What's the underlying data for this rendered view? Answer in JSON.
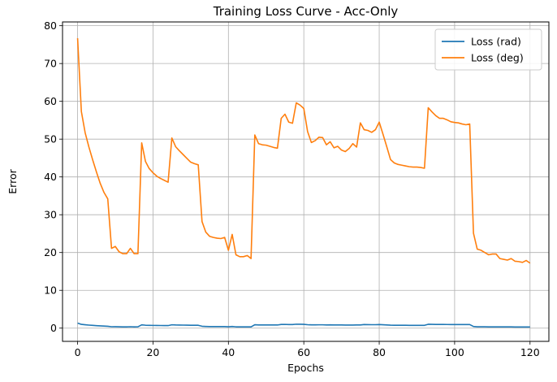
{
  "chart_data": {
    "type": "line",
    "title": "Training Loss Curve - Acc-Only",
    "xlabel": "Epochs",
    "ylabel": "Error",
    "xlim": [
      -4,
      125
    ],
    "ylim": [
      -3.5,
      81
    ],
    "xticks": [
      0,
      20,
      40,
      60,
      80,
      100,
      120
    ],
    "yticks": [
      0,
      10,
      20,
      30,
      40,
      50,
      60,
      70,
      80
    ],
    "grid": true,
    "legend_position": "top-right",
    "x": [
      0,
      1,
      2,
      3,
      4,
      5,
      6,
      7,
      8,
      9,
      10,
      11,
      12,
      13,
      14,
      15,
      16,
      17,
      18,
      19,
      20,
      21,
      22,
      23,
      24,
      25,
      26,
      27,
      28,
      29,
      30,
      31,
      32,
      33,
      34,
      35,
      36,
      37,
      38,
      39,
      40,
      41,
      42,
      43,
      44,
      45,
      46,
      47,
      48,
      49,
      50,
      51,
      52,
      53,
      54,
      55,
      56,
      57,
      58,
      59,
      60,
      61,
      62,
      63,
      64,
      65,
      66,
      67,
      68,
      69,
      70,
      71,
      72,
      73,
      74,
      75,
      76,
      77,
      78,
      79,
      80,
      81,
      82,
      83,
      84,
      85,
      86,
      87,
      88,
      89,
      90,
      91,
      92,
      93,
      94,
      95,
      96,
      97,
      98,
      99,
      100,
      101,
      102,
      103,
      104,
      105,
      106,
      107,
      108,
      109,
      110,
      111,
      112,
      113,
      114,
      115,
      116,
      117,
      118,
      119,
      120
    ],
    "series": [
      {
        "name": "Loss (rad)",
        "color": "#1f77b4",
        "values": [
          1.34,
          1.0,
          0.89,
          0.8,
          0.73,
          0.66,
          0.6,
          0.55,
          0.5,
          0.37,
          0.38,
          0.36,
          0.34,
          0.34,
          0.37,
          0.34,
          0.35,
          0.86,
          0.77,
          0.74,
          0.72,
          0.7,
          0.69,
          0.68,
          0.67,
          0.88,
          0.83,
          0.81,
          0.8,
          0.78,
          0.76,
          0.76,
          0.75,
          0.5,
          0.44,
          0.42,
          0.42,
          0.42,
          0.42,
          0.42,
          0.36,
          0.43,
          0.34,
          0.33,
          0.33,
          0.33,
          0.32,
          0.9,
          0.85,
          0.84,
          0.84,
          0.84,
          0.83,
          0.83,
          0.97,
          0.99,
          0.95,
          0.95,
          1.04,
          1.02,
          1.0,
          0.91,
          0.86,
          0.87,
          0.88,
          0.88,
          0.85,
          0.86,
          0.84,
          0.84,
          0.83,
          0.82,
          0.82,
          0.82,
          0.85,
          0.84,
          0.95,
          0.92,
          0.91,
          0.91,
          0.95,
          0.9,
          0.84,
          0.78,
          0.76,
          0.75,
          0.75,
          0.75,
          0.74,
          0.74,
          0.74,
          0.74,
          0.74,
          1.02,
          1.0,
          0.98,
          0.97,
          0.97,
          0.96,
          0.95,
          0.95,
          0.95,
          0.94,
          0.94,
          0.95,
          0.44,
          0.36,
          0.36,
          0.35,
          0.34,
          0.34,
          0.34,
          0.32,
          0.32,
          0.32,
          0.32,
          0.31,
          0.31,
          0.31,
          0.31,
          0.3
        ]
      },
      {
        "name": "Loss (deg)",
        "color": "#ff7f0e",
        "values": [
          76.7,
          57.3,
          51.7,
          47.9,
          44.5,
          41.3,
          38.3,
          35.9,
          34.2,
          21.1,
          21.6,
          20.2,
          19.7,
          19.7,
          21.1,
          19.7,
          19.7,
          49.0,
          44.1,
          42.2,
          41.1,
          40.2,
          39.6,
          39.1,
          38.6,
          50.3,
          48.0,
          46.9,
          45.9,
          44.9,
          43.9,
          43.5,
          43.2,
          28.2,
          25.4,
          24.3,
          24.0,
          23.8,
          23.7,
          24.0,
          20.6,
          24.8,
          19.4,
          18.9,
          18.9,
          19.2,
          18.4,
          51.1,
          48.8,
          48.5,
          48.4,
          48.1,
          47.8,
          47.6,
          55.5,
          56.6,
          54.5,
          54.2,
          59.6,
          59.0,
          58.1,
          52.0,
          49.1,
          49.6,
          50.5,
          50.4,
          48.5,
          49.3,
          47.7,
          48.1,
          47.1,
          46.7,
          47.5,
          48.8,
          47.9,
          54.3,
          52.5,
          52.3,
          51.8,
          52.5,
          54.5,
          51.3,
          48.0,
          44.6,
          43.7,
          43.3,
          43.1,
          42.9,
          42.7,
          42.6,
          42.6,
          42.5,
          42.3,
          58.3,
          57.2,
          56.2,
          55.5,
          55.5,
          55.1,
          54.6,
          54.4,
          54.3,
          54.0,
          53.8,
          54.0,
          25.1,
          20.9,
          20.6,
          20.0,
          19.4,
          19.6,
          19.6,
          18.4,
          18.2,
          18.0,
          18.4,
          17.7,
          17.6,
          17.4,
          17.9,
          17.2
        ]
      }
    ]
  }
}
